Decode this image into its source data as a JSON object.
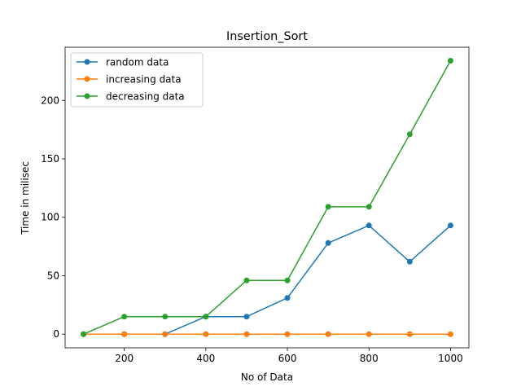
{
  "chart_data": {
    "type": "line",
    "title": "Insertion_Sort",
    "xlabel": "No of Data",
    "ylabel": "Time in milisec",
    "x": [
      100,
      200,
      300,
      400,
      500,
      600,
      700,
      800,
      900,
      1000
    ],
    "xlim": [
      55,
      1045
    ],
    "ylim": [
      -11.7,
      245.5
    ],
    "xticks": [
      200,
      400,
      600,
      800,
      1000
    ],
    "yticks": [
      0,
      50,
      100,
      150,
      200
    ],
    "grid": false,
    "legend": "top-left",
    "series": [
      {
        "name": "random data",
        "color": "#1f77b4",
        "values": [
          0,
          0,
          0,
          15,
          15,
          31,
          78,
          93,
          62,
          93
        ]
      },
      {
        "name": "increasing data",
        "color": "#ff7f0e",
        "values": [
          0,
          0,
          0,
          0,
          0,
          0,
          0,
          0,
          0,
          0
        ]
      },
      {
        "name": "decreasing data",
        "color": "#2ca02c",
        "values": [
          0,
          15,
          15,
          15,
          46,
          46,
          109,
          109,
          171,
          234
        ]
      }
    ]
  }
}
